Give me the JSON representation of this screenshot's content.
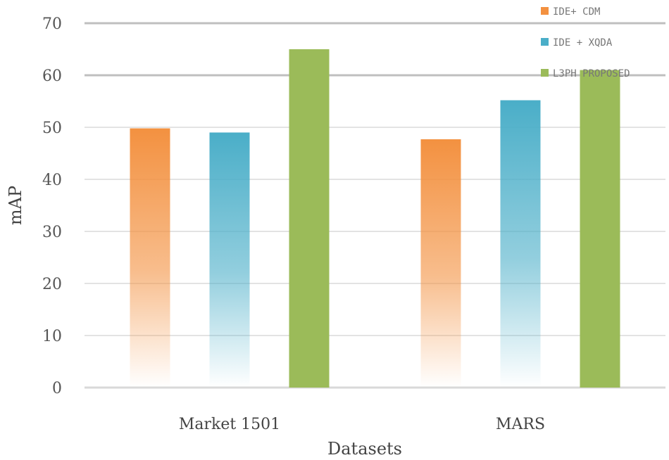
{
  "chart_data": {
    "type": "bar",
    "categories": [
      "Market 1501",
      "MARS"
    ],
    "series": [
      {
        "name": "IDE+ CDM",
        "values": [
          49.8,
          47.7
        ],
        "color": "#f39140",
        "gradient": true
      },
      {
        "name": "IDE + XQDA",
        "values": [
          49.0,
          55.2
        ],
        "color": "#4aaec8",
        "gradient": true
      },
      {
        "name": "L3PH PROPOSED",
        "values": [
          65.0,
          61.0
        ],
        "color": "#9bbb59",
        "gradient": false
      }
    ],
    "xlabel": "Datasets",
    "ylabel": "mAP",
    "ylim": [
      0,
      70
    ],
    "yticks": [
      0,
      10,
      20,
      30,
      40,
      50,
      60,
      70
    ],
    "grid": true,
    "legend_position": "top-right"
  }
}
